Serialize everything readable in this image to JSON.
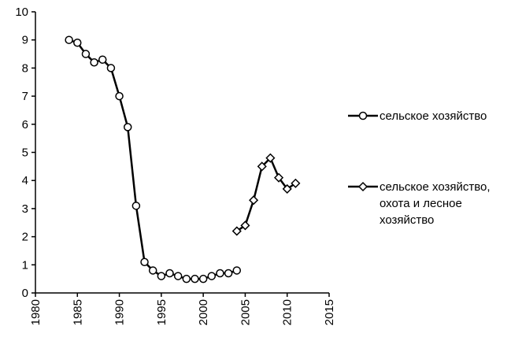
{
  "chart_data": {
    "type": "line",
    "x": [
      1984,
      1985,
      1986,
      1987,
      1988,
      1989,
      1990,
      1991,
      1992,
      1993,
      1994,
      1995,
      1996,
      1997,
      1998,
      1999,
      2000,
      2001,
      2002,
      2003,
      2004,
      2005,
      2006,
      2007,
      2008,
      2009,
      2010,
      2011
    ],
    "series": [
      {
        "name": "сельское хозяйство",
        "color": "#000000",
        "marker": "circle",
        "values": [
          9.0,
          8.9,
          8.5,
          8.2,
          8.3,
          8.0,
          7.0,
          5.9,
          3.1,
          1.1,
          0.8,
          0.6,
          0.7,
          0.6,
          0.5,
          0.5,
          0.5,
          0.6,
          0.7,
          0.7,
          0.8,
          null,
          null,
          null,
          null,
          null,
          null,
          null
        ]
      },
      {
        "name": "сельское хозяйство, охота и лесное хозяйство",
        "color": "#000000",
        "marker": "diamond",
        "values": [
          null,
          null,
          null,
          null,
          null,
          null,
          null,
          null,
          null,
          null,
          null,
          null,
          null,
          null,
          null,
          null,
          null,
          null,
          null,
          null,
          2.2,
          2.4,
          3.3,
          4.5,
          4.8,
          4.1,
          3.7,
          3.9
        ]
      }
    ],
    "xlim": [
      1980,
      2015
    ],
    "xticks": [
      1980,
      1985,
      1990,
      1995,
      2000,
      2005,
      2010,
      2015
    ],
    "ylim": [
      0,
      10
    ],
    "yticks": [
      0,
      1,
      2,
      3,
      4,
      5,
      6,
      7,
      8,
      9,
      10
    ],
    "grid": false
  }
}
